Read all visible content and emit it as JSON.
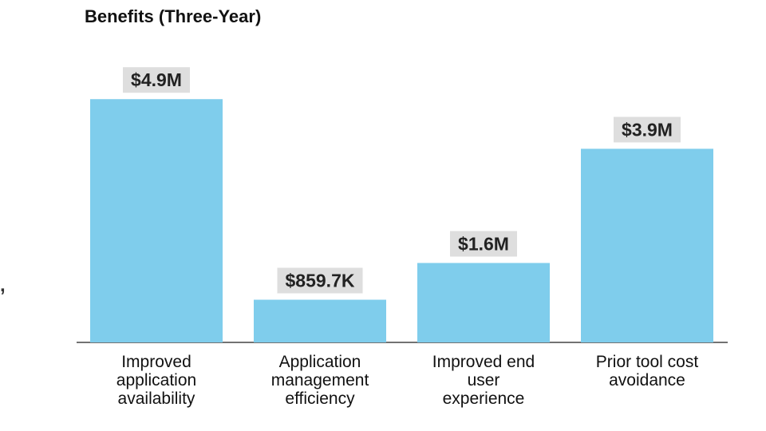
{
  "chart_data": {
    "type": "bar",
    "title": "Benefits (Three-Year)",
    "categories": [
      "Improved\napplication\navailability",
      "Application\nmanagement\nefficiency",
      "Improved end\nuser\nexperience",
      "Prior tool cost\navoidance"
    ],
    "values": [
      4.9,
      0.8597,
      1.6,
      3.9
    ],
    "value_unit": "$M",
    "data_labels": [
      "$4.9M",
      "$859.7K",
      "$1.6M",
      "$3.9M"
    ],
    "xlabel": "",
    "ylabel": "",
    "grid": false,
    "bar_color": "#7fcdec",
    "label_bg_color": "#dedede"
  },
  "stray_text": ","
}
